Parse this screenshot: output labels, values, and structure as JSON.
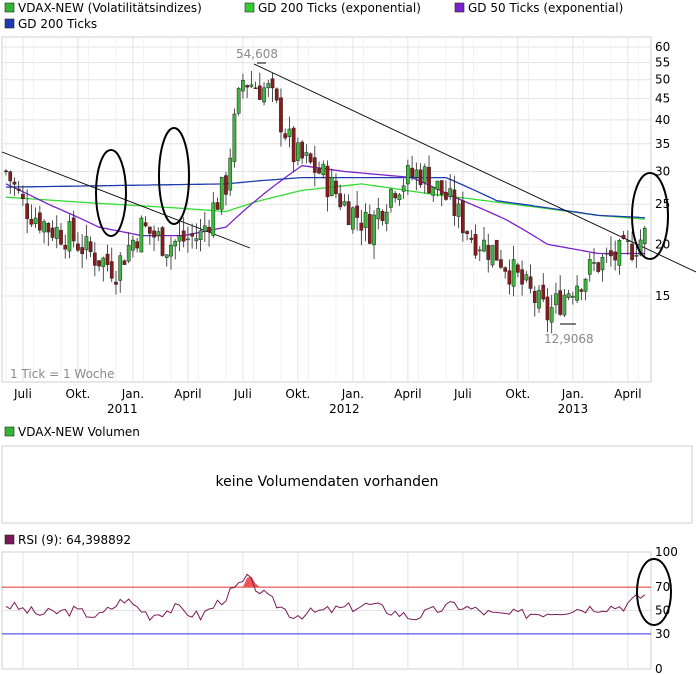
{
  "chart_data": [
    {
      "type": "candlestick",
      "legend": [
        {
          "name": "VDAX-NEW (Volatilitätsindizes)",
          "color": "#35b535"
        },
        {
          "name": "GD 200 Ticks (exponential)",
          "color": "#33cc33"
        },
        {
          "name": "GD 50 Ticks (exponential)",
          "color": "#7a22cc"
        },
        {
          "name": "GD 200 Ticks",
          "color": "#1f3cb0"
        }
      ],
      "yscale": "log",
      "ylim": [
        11,
        62
      ],
      "yticks": [
        15,
        20,
        25,
        30,
        35,
        40,
        45,
        50,
        55,
        60
      ],
      "xtick_labels": [
        "Juli",
        "Okt.",
        "Jan.",
        "April",
        "Juli",
        "Okt.",
        "Jan.",
        "April",
        "Juli",
        "Okt.",
        "Jan.",
        "April"
      ],
      "year_labels": [
        "2011",
        "2012",
        "2013"
      ],
      "annotations": {
        "max": "54,608",
        "min": "12,9068",
        "note": "1 Tick = 1 Woche"
      },
      "series": [
        {
          "name": "VDAX-NEW (Volatilitätsindizes)",
          "anchors_close": [
            [
              0,
              30
            ],
            [
              4,
              25
            ],
            [
              10,
              22
            ],
            [
              15,
              21
            ],
            [
              20,
              19
            ],
            [
              26,
              17.5
            ],
            [
              32,
              22
            ],
            [
              38,
              20
            ],
            [
              46,
              21
            ],
            [
              52,
              28
            ],
            [
              56,
              50
            ],
            [
              62,
              47
            ],
            [
              68,
              33
            ],
            [
              74,
              30
            ],
            [
              80,
              25
            ],
            [
              86,
              22
            ],
            [
              92,
              28
            ],
            [
              98,
              30
            ],
            [
              104,
              26
            ],
            [
              110,
              21
            ],
            [
              116,
              19
            ],
            [
              122,
              16
            ],
            [
              128,
              13.5
            ],
            [
              134,
              16
            ],
            [
              140,
              18
            ],
            [
              146,
              19
            ],
            [
              151,
              21
            ]
          ]
        },
        {
          "name": "GD 200 Ticks (exponential)",
          "anchors": [
            [
              0,
              26
            ],
            [
              20,
              25.2
            ],
            [
              40,
              24.5
            ],
            [
              52,
              24
            ],
            [
              60,
              25.5
            ],
            [
              70,
              27
            ],
            [
              84,
              28
            ],
            [
              100,
              26.5
            ],
            [
              120,
              25
            ],
            [
              140,
              23.5
            ],
            [
              151,
              23
            ]
          ]
        },
        {
          "name": "GD 50 Ticks (exponential)",
          "anchors": [
            [
              0,
              28
            ],
            [
              10,
              25
            ],
            [
              22,
              22
            ],
            [
              32,
              21
            ],
            [
              42,
              21
            ],
            [
              52,
              22
            ],
            [
              60,
              26
            ],
            [
              70,
              31
            ],
            [
              80,
              30
            ],
            [
              96,
              29
            ],
            [
              106,
              26
            ],
            [
              118,
              23
            ],
            [
              128,
              20
            ],
            [
              140,
              19
            ],
            [
              151,
              19
            ]
          ]
        },
        {
          "name": "GD 200 Ticks",
          "anchors": [
            [
              0,
              27.5
            ],
            [
              52,
              28
            ],
            [
              60,
              28.5
            ],
            [
              70,
              29
            ],
            [
              104,
              29
            ],
            [
              116,
              25.5
            ],
            [
              140,
              23.5
            ],
            [
              151,
              23.2
            ]
          ]
        }
      ]
    },
    {
      "type": "bar",
      "legend": [
        {
          "name": "VDAX-NEW Volumen",
          "color": "#35b535"
        }
      ],
      "message": "keine Volumendaten vorhanden"
    },
    {
      "type": "line",
      "legend": [
        {
          "name": "RSI (9): 64,398892",
          "color": "#7a1a5a"
        }
      ],
      "ylim": [
        0,
        100
      ],
      "yticks": [
        0,
        30,
        50,
        70,
        100
      ],
      "reference_lines": [
        {
          "value": 70,
          "color": "#e83030"
        },
        {
          "value": 30,
          "color": "#3030e0"
        }
      ],
      "anchors": [
        [
          0,
          55
        ],
        [
          8,
          47
        ],
        [
          16,
          50
        ],
        [
          22,
          45
        ],
        [
          28,
          60
        ],
        [
          34,
          46
        ],
        [
          40,
          52
        ],
        [
          46,
          45
        ],
        [
          52,
          62
        ],
        [
          57,
          77
        ],
        [
          62,
          60
        ],
        [
          68,
          46
        ],
        [
          76,
          50
        ],
        [
          86,
          55
        ],
        [
          96,
          44
        ],
        [
          106,
          55
        ],
        [
          116,
          46
        ],
        [
          126,
          48
        ],
        [
          136,
          52
        ],
        [
          146,
          54
        ],
        [
          151,
          64
        ]
      ]
    }
  ]
}
